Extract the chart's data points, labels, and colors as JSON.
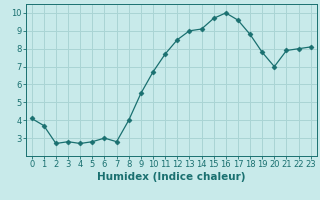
{
  "x": [
    0,
    1,
    2,
    3,
    4,
    5,
    6,
    7,
    8,
    9,
    10,
    11,
    12,
    13,
    14,
    15,
    16,
    17,
    18,
    19,
    20,
    21,
    22,
    23
  ],
  "y": [
    4.1,
    3.7,
    2.7,
    2.8,
    2.7,
    2.8,
    3.0,
    2.8,
    4.0,
    5.5,
    6.7,
    7.7,
    8.5,
    9.0,
    9.1,
    9.7,
    10.0,
    9.6,
    8.8,
    7.8,
    7.0,
    7.9,
    8.0,
    8.1
  ],
  "line_color": "#1a7070",
  "marker": "D",
  "marker_size": 2.5,
  "background_color": "#c8eaea",
  "grid_color": "#aad4d4",
  "xlabel": "Humidex (Indice chaleur)",
  "xlim": [
    -0.5,
    23.5
  ],
  "ylim": [
    2.0,
    10.5
  ],
  "yticks": [
    3,
    4,
    5,
    6,
    7,
    8,
    9,
    10
  ],
  "xticks": [
    0,
    1,
    2,
    3,
    4,
    5,
    6,
    7,
    8,
    9,
    10,
    11,
    12,
    13,
    14,
    15,
    16,
    17,
    18,
    19,
    20,
    21,
    22,
    23
  ],
  "tick_color": "#1a7070",
  "label_color": "#1a7070",
  "spine_color": "#1a7070",
  "tick_fontsize": 6.0,
  "xlabel_fontsize": 7.5
}
